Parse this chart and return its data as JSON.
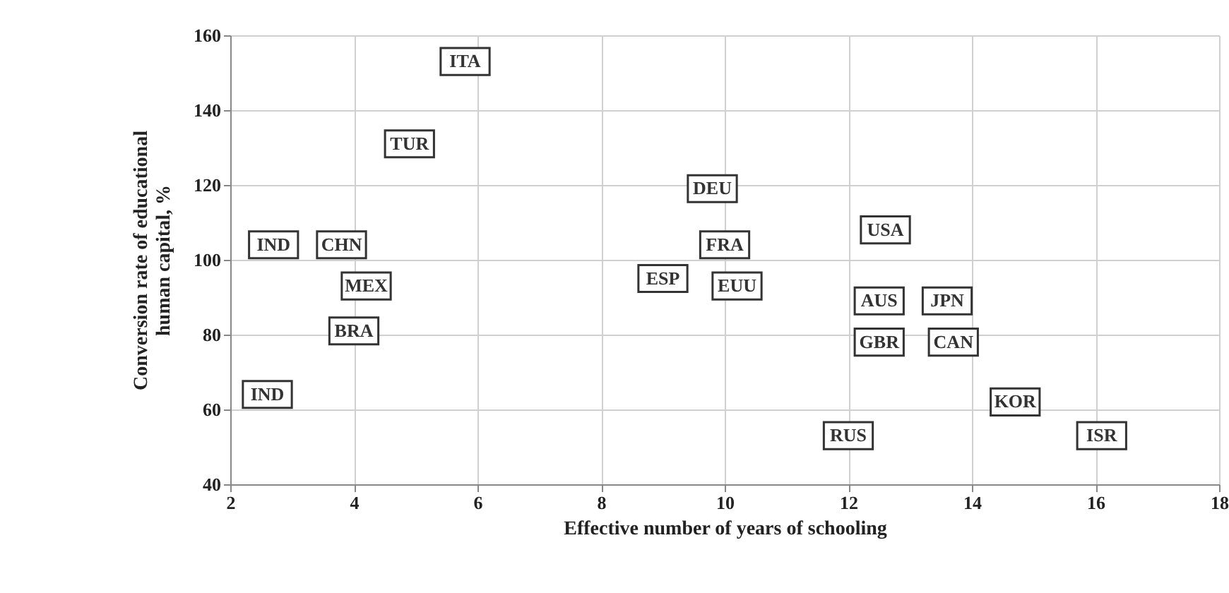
{
  "chart_data": {
    "type": "scatter",
    "xlabel": "Effective number of years of schooling",
    "ylabel": "Conversion rate of educational\nhuman capital, %",
    "xlim": [
      2,
      18
    ],
    "xticks": [
      2,
      4,
      6,
      8,
      10,
      12,
      14,
      16,
      18
    ],
    "ylim": [
      40,
      160
    ],
    "yticks": [
      40,
      60,
      80,
      100,
      120,
      140,
      160
    ],
    "grid": true,
    "marker": "square",
    "series": [
      {
        "color": "#333333",
        "x": [
          5.8,
          4.9,
          2.7,
          3.8,
          4.2,
          4.0,
          2.6,
          9.8,
          10.0,
          9.0,
          10.2,
          12.6,
          12.5,
          13.6,
          12.5,
          13.7,
          14.7,
          16.1,
          12.0
        ],
        "values": [
          153,
          131,
          104,
          104,
          93,
          81,
          64,
          119,
          104,
          95,
          93,
          108,
          89,
          89,
          78,
          78,
          62,
          53,
          53
        ],
        "value_labels": [
          "ITA",
          "TUR",
          "IND",
          "CHN",
          "MEX",
          "BRA",
          "IND",
          "DEU",
          "FRA",
          "ESP",
          "EUU",
          "USA",
          "AUS",
          "JPN",
          "GBR",
          "CAN",
          "KOR",
          "ISR",
          "RUS"
        ]
      }
    ]
  }
}
